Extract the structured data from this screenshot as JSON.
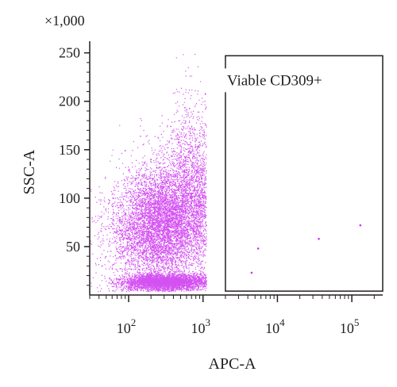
{
  "chart_data": {
    "type": "scatter",
    "xlabel": "APC-A",
    "ylabel": "SSC-A",
    "y_multiplier_label": "×1,000",
    "x_scale": "log",
    "x_ticks": [
      {
        "value": 100,
        "base": "10",
        "exp": "2"
      },
      {
        "value": 1000,
        "base": "10",
        "exp": "3"
      },
      {
        "value": 10000,
        "base": "10",
        "exp": "4"
      },
      {
        "value": 100000,
        "base": "10",
        "exp": "5"
      }
    ],
    "y_ticks": [
      {
        "value": 50,
        "label": "50"
      },
      {
        "value": 100,
        "label": "100"
      },
      {
        "value": 150,
        "label": "150"
      },
      {
        "value": 200,
        "label": "200"
      },
      {
        "value": 250,
        "label": "250"
      }
    ],
    "xlim": [
      30,
      260000
    ],
    "ylim": [
      0,
      262
    ],
    "point_color": "#cc33ee",
    "populations": [
      {
        "x_center": 300,
        "x_log_spread": 0.28,
        "y_center": 14,
        "y_spread": 4,
        "count": 3600
      },
      {
        "x_center": 330,
        "x_log_spread": 0.3,
        "y_center": 80,
        "y_spread": 30,
        "count": 5200
      },
      {
        "x_center": 160,
        "x_log_spread": 0.3,
        "y_center": 60,
        "y_spread": 26,
        "count": 1700
      },
      {
        "x_center": 650,
        "x_log_spread": 0.16,
        "y_center": 125,
        "y_spread": 40,
        "count": 1000
      }
    ],
    "gated_points": [
      {
        "x": 5500,
        "y": 48
      },
      {
        "x": 36000,
        "y": 58
      },
      {
        "x": 130000,
        "y": 72
      },
      {
        "x": 4500,
        "y": 23
      }
    ],
    "gate": {
      "label": "Viable CD309+",
      "x_range": [
        2000,
        260000
      ],
      "y_range": [
        4,
        247
      ]
    }
  }
}
